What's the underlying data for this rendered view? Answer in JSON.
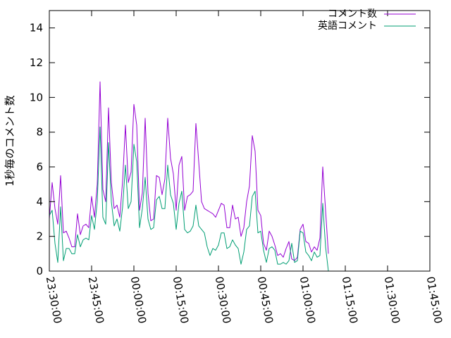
{
  "chart_data": {
    "type": "line",
    "title": "",
    "xlabel": "",
    "ylabel": "1秒毎のコメント数",
    "ylim": [
      0,
      15
    ],
    "yticks": [
      0,
      2,
      4,
      6,
      8,
      10,
      12,
      14
    ],
    "xlim_minutes": [
      -30,
      105
    ],
    "xticks": [
      {
        "label": "23:30:00",
        "minute": -30
      },
      {
        "label": "23:45:00",
        "minute": -15
      },
      {
        "label": "00:00:00",
        "minute": 0
      },
      {
        "label": "00:15:00",
        "minute": 15
      },
      {
        "label": "00:30:00",
        "minute": 30
      },
      {
        "label": "00:45:00",
        "minute": 45
      },
      {
        "label": "01:00:00",
        "minute": 60
      },
      {
        "label": "01:15:00",
        "minute": 75
      },
      {
        "label": "01:30:00",
        "minute": 90
      },
      {
        "label": "01:45:00",
        "minute": 105
      }
    ],
    "grid": false,
    "legend_position": "top-right",
    "series": [
      {
        "name": "コメント数",
        "color": "#9400d3",
        "points": [
          [
            -30,
            3.0
          ],
          [
            -29,
            5.1
          ],
          [
            -28,
            3.6
          ],
          [
            -27,
            2.7
          ],
          [
            -26,
            5.5
          ],
          [
            -25,
            2.2
          ],
          [
            -24,
            2.3
          ],
          [
            -23,
            1.9
          ],
          [
            -22,
            1.4
          ],
          [
            -21,
            1.4
          ],
          [
            -20,
            3.3
          ],
          [
            -19,
            2.1
          ],
          [
            -18,
            2.6
          ],
          [
            -17,
            2.7
          ],
          [
            -16,
            2.5
          ],
          [
            -15,
            4.3
          ],
          [
            -14,
            3.1
          ],
          [
            -13,
            5.0
          ],
          [
            -12,
            10.9
          ],
          [
            -11,
            4.7
          ],
          [
            -10,
            4.0
          ],
          [
            -9,
            9.4
          ],
          [
            -8,
            5.1
          ],
          [
            -7,
            3.6
          ],
          [
            -6,
            3.8
          ],
          [
            -5,
            3.1
          ],
          [
            -4,
            5.2
          ],
          [
            -3,
            8.4
          ],
          [
            -2,
            5.1
          ],
          [
            -1,
            5.7
          ],
          [
            0,
            9.6
          ],
          [
            1,
            8.4
          ],
          [
            2,
            3.5
          ],
          [
            3,
            4.5
          ],
          [
            4,
            8.8
          ],
          [
            5,
            4.5
          ],
          [
            6,
            2.9
          ],
          [
            7,
            3.0
          ],
          [
            8,
            5.5
          ],
          [
            9,
            5.4
          ],
          [
            10,
            4.4
          ],
          [
            11,
            5.3
          ],
          [
            12,
            8.8
          ],
          [
            13,
            6.5
          ],
          [
            14,
            5.6
          ],
          [
            15,
            3.5
          ],
          [
            16,
            6.1
          ],
          [
            17,
            6.6
          ],
          [
            18,
            3.5
          ],
          [
            19,
            4.3
          ],
          [
            20,
            4.4
          ],
          [
            21,
            4.6
          ],
          [
            22,
            8.5
          ],
          [
            23,
            6.3
          ],
          [
            24,
            4.0
          ],
          [
            25,
            3.6
          ],
          [
            26,
            3.5
          ],
          [
            27,
            3.4
          ],
          [
            28,
            3.3
          ],
          [
            29,
            3.1
          ],
          [
            30,
            3.5
          ],
          [
            31,
            3.9
          ],
          [
            32,
            3.8
          ],
          [
            33,
            2.5
          ],
          [
            34,
            2.5
          ],
          [
            35,
            3.8
          ],
          [
            36,
            3.0
          ],
          [
            37,
            3.1
          ],
          [
            38,
            2.0
          ],
          [
            39,
            2.5
          ],
          [
            40,
            4.0
          ],
          [
            41,
            4.9
          ],
          [
            42,
            7.8
          ],
          [
            43,
            6.9
          ],
          [
            44,
            3.5
          ],
          [
            45,
            3.2
          ],
          [
            46,
            1.6
          ],
          [
            47,
            1.2
          ],
          [
            48,
            2.3
          ],
          [
            49,
            2.0
          ],
          [
            50,
            1.5
          ],
          [
            51,
            0.9
          ],
          [
            52,
            1.0
          ],
          [
            53,
            0.8
          ],
          [
            54,
            1.3
          ],
          [
            55,
            1.7
          ],
          [
            56,
            0.7
          ],
          [
            57,
            0.6
          ],
          [
            58,
            0.8
          ],
          [
            59,
            2.4
          ],
          [
            60,
            2.7
          ],
          [
            61,
            1.7
          ],
          [
            62,
            1.6
          ],
          [
            63,
            1.1
          ],
          [
            64,
            1.4
          ],
          [
            65,
            1.2
          ],
          [
            66,
            1.9
          ],
          [
            67,
            6.0
          ],
          [
            68,
            3.5
          ],
          [
            69,
            1.0
          ]
        ]
      },
      {
        "name": "英語コメント",
        "color": "#009e73",
        "points": [
          [
            -30,
            3.2
          ],
          [
            -29,
            3.5
          ],
          [
            -28,
            1.6
          ],
          [
            -27,
            0.5
          ],
          [
            -26,
            3.7
          ],
          [
            -25,
            0.6
          ],
          [
            -24,
            1.3
          ],
          [
            -23,
            1.3
          ],
          [
            -22,
            1.0
          ],
          [
            -21,
            1.0
          ],
          [
            -20,
            2.1
          ],
          [
            -19,
            1.4
          ],
          [
            -18,
            1.8
          ],
          [
            -17,
            1.9
          ],
          [
            -16,
            1.8
          ],
          [
            -15,
            3.2
          ],
          [
            -14,
            2.4
          ],
          [
            -13,
            4.0
          ],
          [
            -12,
            8.3
          ],
          [
            -11,
            3.1
          ],
          [
            -10,
            2.7
          ],
          [
            -9,
            7.4
          ],
          [
            -8,
            4.0
          ],
          [
            -7,
            2.6
          ],
          [
            -6,
            3.0
          ],
          [
            -5,
            2.3
          ],
          [
            -4,
            3.7
          ],
          [
            -3,
            6.1
          ],
          [
            -2,
            3.6
          ],
          [
            -1,
            4.0
          ],
          [
            0,
            7.3
          ],
          [
            1,
            6.3
          ],
          [
            2,
            2.5
          ],
          [
            3,
            3.6
          ],
          [
            4,
            5.4
          ],
          [
            5,
            3.0
          ],
          [
            6,
            2.4
          ],
          [
            7,
            2.5
          ],
          [
            8,
            4.1
          ],
          [
            9,
            4.3
          ],
          [
            10,
            3.6
          ],
          [
            11,
            3.6
          ],
          [
            12,
            6.1
          ],
          [
            13,
            4.4
          ],
          [
            14,
            3.9
          ],
          [
            15,
            2.4
          ],
          [
            16,
            3.9
          ],
          [
            17,
            4.6
          ],
          [
            18,
            2.4
          ],
          [
            19,
            2.2
          ],
          [
            20,
            2.3
          ],
          [
            21,
            2.6
          ],
          [
            22,
            3.8
          ],
          [
            23,
            2.6
          ],
          [
            24,
            2.4
          ],
          [
            25,
            2.2
          ],
          [
            26,
            1.4
          ],
          [
            27,
            0.9
          ],
          [
            28,
            1.3
          ],
          [
            29,
            1.2
          ],
          [
            30,
            1.5
          ],
          [
            31,
            2.2
          ],
          [
            32,
            2.2
          ],
          [
            33,
            1.3
          ],
          [
            34,
            1.4
          ],
          [
            35,
            1.8
          ],
          [
            36,
            1.5
          ],
          [
            37,
            1.3
          ],
          [
            38,
            0.4
          ],
          [
            39,
            1.1
          ],
          [
            40,
            2.4
          ],
          [
            41,
            2.6
          ],
          [
            42,
            4.3
          ],
          [
            43,
            4.6
          ],
          [
            44,
            2.2
          ],
          [
            45,
            2.3
          ],
          [
            46,
            1.2
          ],
          [
            47,
            0.5
          ],
          [
            48,
            1.3
          ],
          [
            49,
            1.4
          ],
          [
            50,
            1.2
          ],
          [
            51,
            0.4
          ],
          [
            52,
            0.4
          ],
          [
            53,
            0.5
          ],
          [
            54,
            0.4
          ],
          [
            55,
            0.6
          ],
          [
            56,
            1.6
          ],
          [
            57,
            0.5
          ],
          [
            58,
            0.6
          ],
          [
            59,
            2.3
          ],
          [
            60,
            2.2
          ],
          [
            61,
            1.1
          ],
          [
            62,
            0.9
          ],
          [
            63,
            0.6
          ],
          [
            64,
            1.1
          ],
          [
            65,
            0.8
          ],
          [
            66,
            0.9
          ],
          [
            67,
            3.9
          ],
          [
            68,
            1.4
          ],
          [
            69,
            0.0
          ]
        ]
      }
    ]
  }
}
